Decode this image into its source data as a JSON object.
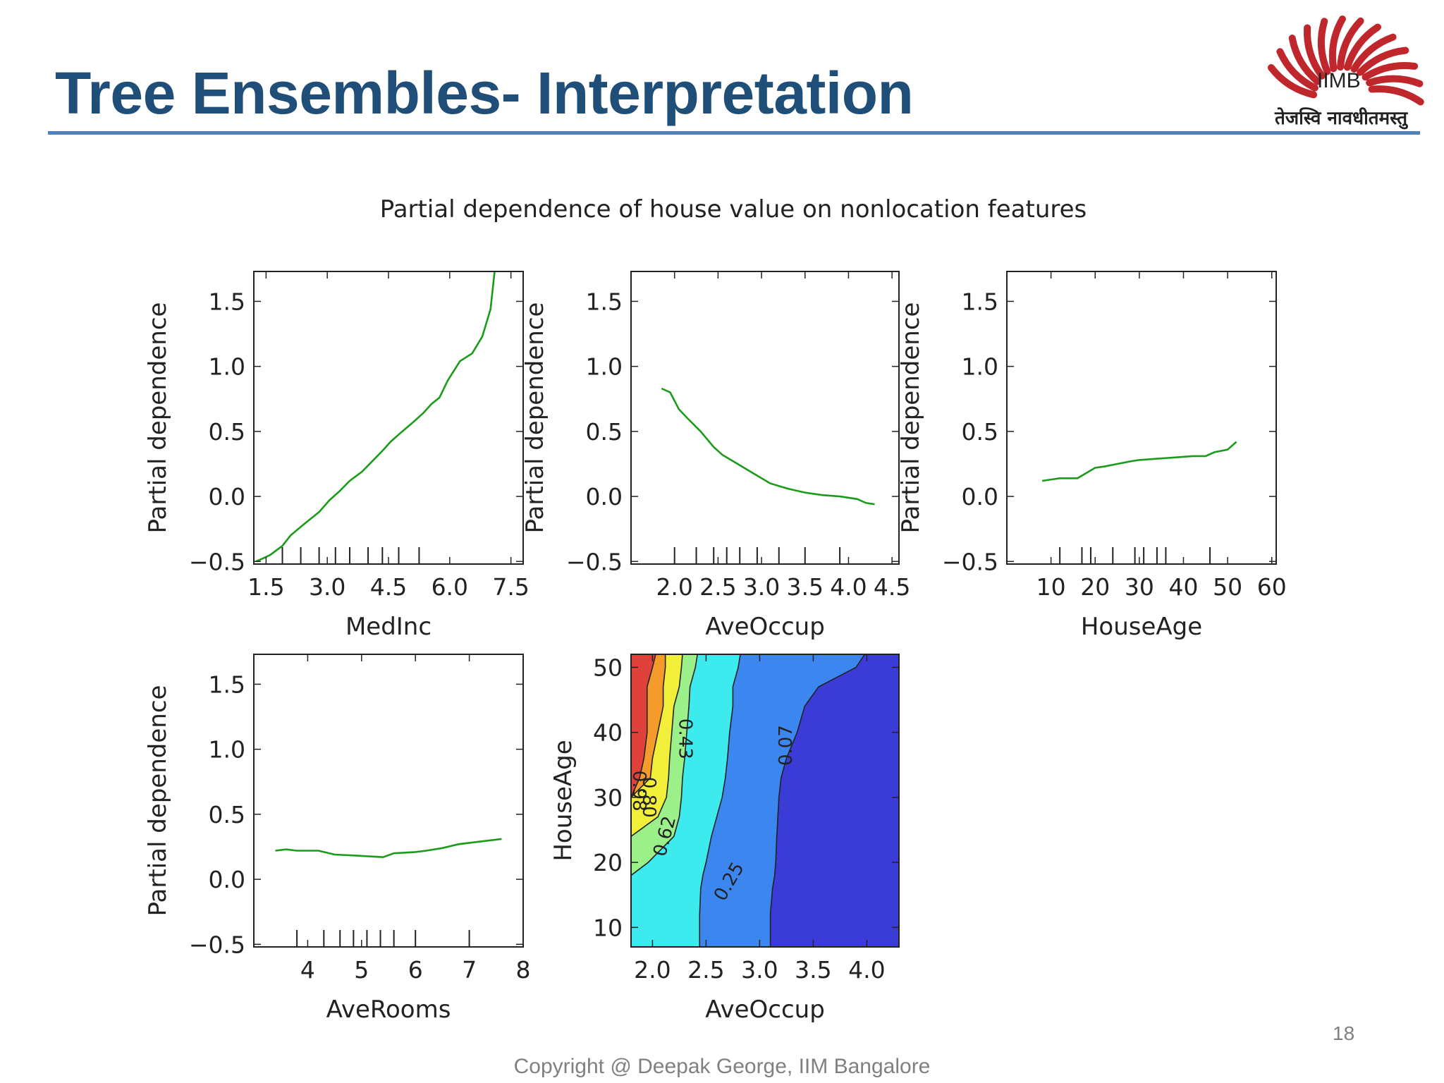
{
  "slide": {
    "title": "Tree Ensembles- Interpretation",
    "logo_text": "IIMB",
    "logo_motto": "तेजस्वि नावधीतमस्तु",
    "page_number": "18",
    "copyright": "Copyright @ Deepak George, IIM Bangalore",
    "title_color": "#1f4e79",
    "rule_color": "#4f81bd",
    "logo_color": "#c0272d"
  },
  "chart_data": {
    "suptitle": "Partial dependence of house value on nonlocation features",
    "line_color": "#1a9c1a",
    "panels": [
      {
        "type": "line",
        "xlabel": "MedInc",
        "ylabel": "Partial dependence",
        "xlim": [
          1.2,
          7.8
        ],
        "ylim": [
          -0.52,
          1.73
        ],
        "xticks": [
          1.5,
          3.0,
          4.5,
          6.0,
          7.5
        ],
        "xtick_labels": [
          "1.5",
          "3.0",
          "4.5",
          "6.0",
          "7.5"
        ],
        "yticks": [
          -0.5,
          0.0,
          0.5,
          1.0,
          1.5
        ],
        "ytick_labels": [
          "−0.5",
          "0.0",
          "0.5",
          "1.0",
          "1.5"
        ],
        "deciles": [
          1.9,
          2.35,
          2.8,
          3.2,
          3.55,
          4.0,
          4.35,
          4.75,
          5.25
        ],
        "x": [
          1.25,
          1.4,
          1.6,
          1.9,
          2.1,
          2.4,
          2.8,
          3.05,
          3.3,
          3.55,
          3.85,
          4.1,
          4.35,
          4.55,
          4.8,
          5.1,
          5.35,
          5.55,
          5.75,
          5.95,
          6.25,
          6.55,
          6.8,
          7.0,
          7.1
        ],
        "y": [
          -0.5,
          -0.48,
          -0.45,
          -0.38,
          -0.3,
          -0.22,
          -0.12,
          -0.03,
          0.04,
          0.12,
          0.19,
          0.27,
          0.35,
          0.42,
          0.49,
          0.57,
          0.64,
          0.71,
          0.76,
          0.89,
          1.04,
          1.1,
          1.23,
          1.44,
          1.73
        ]
      },
      {
        "type": "line",
        "xlabel": "AveOccup",
        "ylabel": "Partial dependence",
        "xlim": [
          1.5,
          4.58
        ],
        "ylim": [
          -0.52,
          1.73
        ],
        "xticks": [
          2.0,
          2.5,
          3.0,
          3.5,
          4.0,
          4.5
        ],
        "xtick_labels": [
          "2.0",
          "2.5",
          "3.0",
          "3.5",
          "4.0",
          "4.5"
        ],
        "yticks": [
          -0.5,
          0.0,
          0.5,
          1.0,
          1.5
        ],
        "ytick_labels": [
          "−0.5",
          "0.0",
          "0.5",
          "1.0",
          "1.5"
        ],
        "deciles": [
          2.0,
          2.25,
          2.45,
          2.6,
          2.75,
          2.95,
          3.2,
          3.5,
          3.9
        ],
        "x": [
          1.85,
          1.95,
          2.05,
          2.15,
          2.3,
          2.45,
          2.55,
          2.7,
          2.9,
          3.1,
          3.3,
          3.5,
          3.7,
          3.9,
          4.1,
          4.2,
          4.3
        ],
        "y": [
          0.83,
          0.8,
          0.67,
          0.6,
          0.5,
          0.38,
          0.32,
          0.26,
          0.18,
          0.1,
          0.06,
          0.03,
          0.01,
          0.0,
          -0.02,
          -0.05,
          -0.06
        ]
      },
      {
        "type": "line",
        "xlabel": "HouseAge",
        "ylabel": "Partial dependence",
        "xlim": [
          0,
          61
        ],
        "ylim": [
          -0.52,
          1.73
        ],
        "xticks": [
          10,
          20,
          30,
          40,
          50,
          60
        ],
        "xtick_labels": [
          "10",
          "20",
          "30",
          "40",
          "50",
          "60"
        ],
        "yticks": [
          -0.5,
          0.0,
          0.5,
          1.0,
          1.5
        ],
        "ytick_labels": [
          "−0.5",
          "0.0",
          "0.5",
          "1.0",
          "1.5"
        ],
        "deciles": [
          12,
          17,
          19,
          24,
          29,
          31,
          34,
          36,
          46
        ],
        "x": [
          8,
          10,
          12,
          16,
          18,
          20,
          22,
          25,
          28,
          30,
          34,
          38,
          42,
          45,
          47,
          50,
          52
        ],
        "y": [
          0.12,
          0.13,
          0.14,
          0.14,
          0.18,
          0.22,
          0.23,
          0.25,
          0.27,
          0.28,
          0.29,
          0.3,
          0.31,
          0.31,
          0.34,
          0.36,
          0.42
        ]
      },
      {
        "type": "line",
        "xlabel": "AveRooms",
        "ylabel": "Partial dependence",
        "xlim": [
          3.0,
          8.0
        ],
        "ylim": [
          -0.52,
          1.73
        ],
        "xticks": [
          4,
          5,
          6,
          7,
          8
        ],
        "xtick_labels": [
          "4",
          "5",
          "6",
          "7",
          "8"
        ],
        "yticks": [
          -0.5,
          0.0,
          0.5,
          1.0,
          1.5
        ],
        "ytick_labels": [
          "−0.5",
          "0.0",
          "0.5",
          "1.0",
          "1.5"
        ],
        "deciles": [
          3.8,
          4.3,
          4.6,
          4.85,
          5.1,
          5.35,
          5.6,
          6.0,
          7.0
        ],
        "x": [
          3.4,
          3.6,
          3.8,
          4.2,
          4.5,
          5.0,
          5.4,
          5.6,
          6.0,
          6.2,
          6.5,
          6.8,
          7.2,
          7.6
        ],
        "y": [
          0.22,
          0.23,
          0.22,
          0.22,
          0.19,
          0.18,
          0.17,
          0.2,
          0.21,
          0.22,
          0.24,
          0.27,
          0.29,
          0.31
        ]
      },
      {
        "type": "heatmap",
        "xlabel": "AveOccup",
        "ylabel": "HouseAge",
        "xlim": [
          1.8,
          4.3
        ],
        "ylim": [
          7,
          52
        ],
        "xticks": [
          2.0,
          2.5,
          3.0,
          3.5,
          4.0
        ],
        "xtick_labels": [
          "2.0",
          "2.5",
          "3.0",
          "3.5",
          "4.0"
        ],
        "yticks": [
          10,
          20,
          30,
          40,
          50
        ],
        "ytick_labels": [
          "10",
          "20",
          "30",
          "40",
          "50"
        ],
        "levels": [
          -0.12,
          0.07,
          0.25,
          0.43,
          0.62,
          0.8,
          0.98
        ],
        "level_labels": [
          "0.07",
          "0.25",
          "0.43",
          "0.62",
          "0.80",
          "0.98"
        ],
        "band_colors": [
          "#3b3bd8",
          "#3c86f0",
          "#3deaee",
          "#9cf08a",
          "#f2ef3a",
          "#f59b2c",
          "#e0413b"
        ]
      }
    ]
  }
}
